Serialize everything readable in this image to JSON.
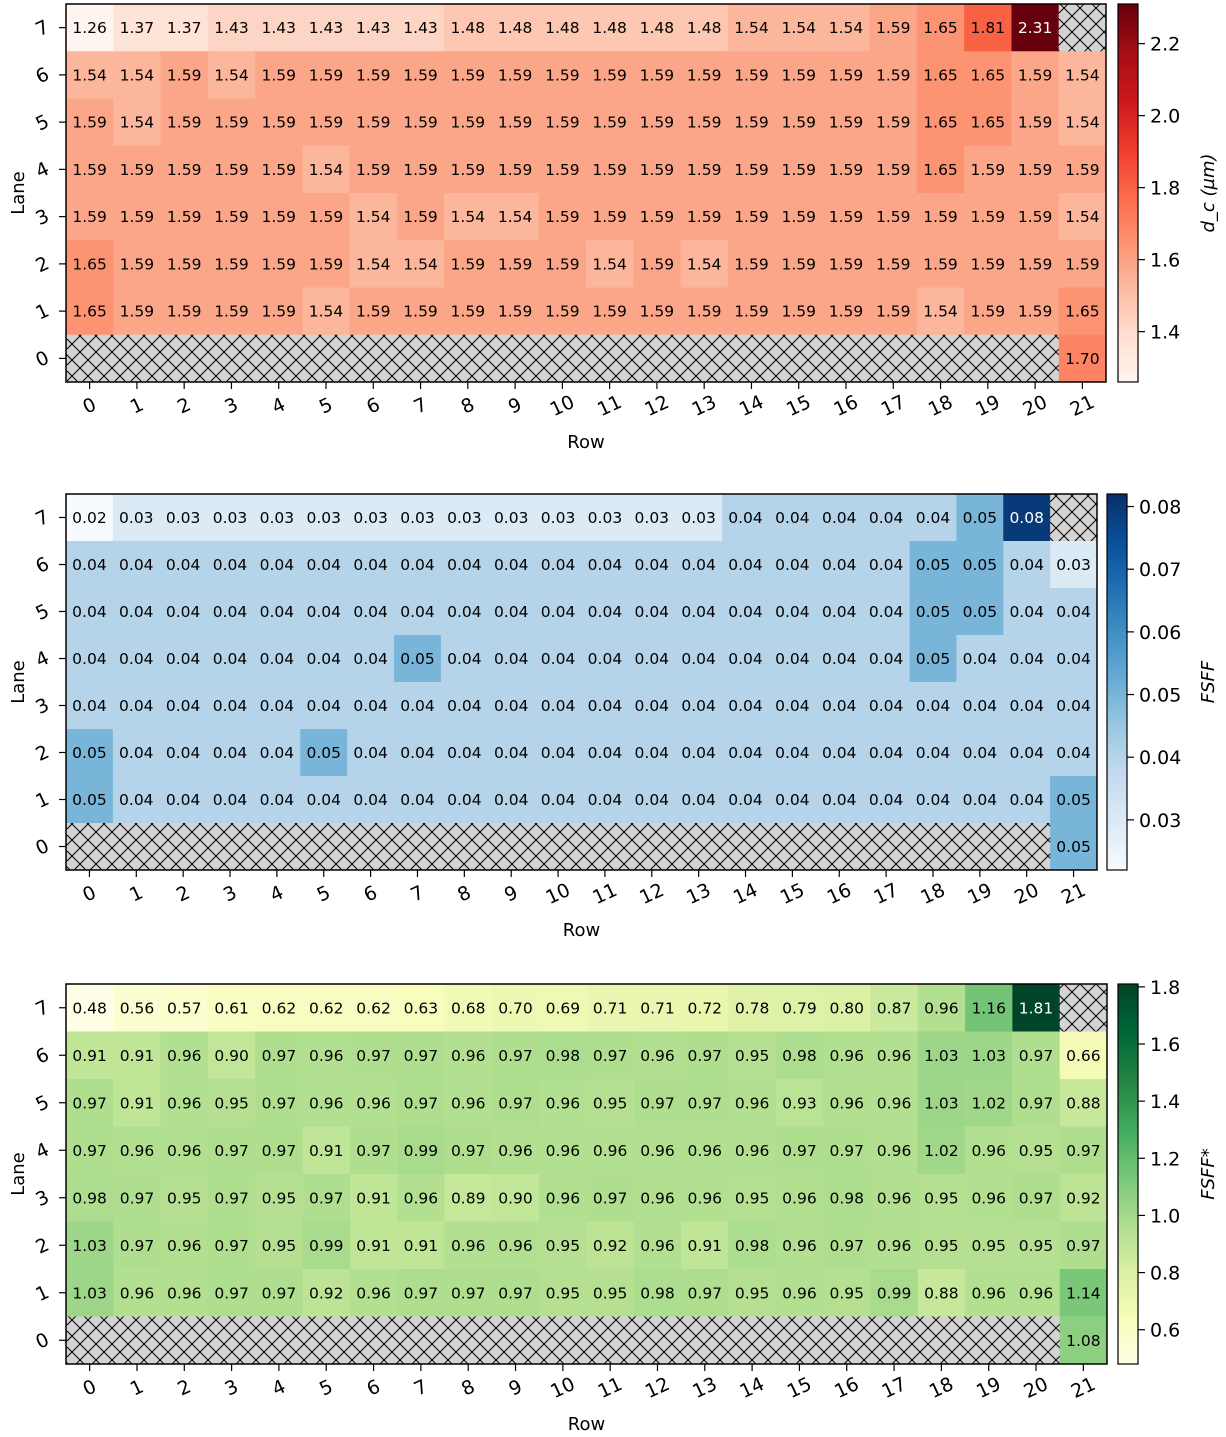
{
  "chart_data": [
    {
      "type": "heatmap",
      "xlabel": "Row",
      "ylabel": "Lane",
      "colorbar_label": "d_c (µm)",
      "colormap": "Reds",
      "vmin": 1.26,
      "vmax": 2.31,
      "colorbar_ticks": [
        1.4,
        1.6,
        1.8,
        2.0,
        2.2
      ],
      "colorbar_tick_labels": [
        "1.4",
        "1.6",
        "1.8",
        "2.0",
        "2.2"
      ],
      "x_ticks": [
        "0",
        "1",
        "2",
        "3",
        "4",
        "5",
        "6",
        "7",
        "8",
        "9",
        "10",
        "11",
        "12",
        "13",
        "14",
        "15",
        "16",
        "17",
        "18",
        "19",
        "20",
        "21"
      ],
      "y_ticks": [
        "7",
        "6",
        "5",
        "4",
        "3",
        "2",
        "1",
        "0"
      ],
      "missing_pattern": "hatched grey",
      "values": [
        [
          1.26,
          1.37,
          1.37,
          1.43,
          1.43,
          1.43,
          1.43,
          1.43,
          1.48,
          1.48,
          1.48,
          1.48,
          1.48,
          1.48,
          1.54,
          1.54,
          1.54,
          1.59,
          1.65,
          1.81,
          2.31,
          null
        ],
        [
          1.54,
          1.54,
          1.59,
          1.54,
          1.59,
          1.59,
          1.59,
          1.59,
          1.59,
          1.59,
          1.59,
          1.59,
          1.59,
          1.59,
          1.59,
          1.59,
          1.59,
          1.59,
          1.65,
          1.65,
          1.59,
          1.54
        ],
        [
          1.59,
          1.54,
          1.59,
          1.59,
          1.59,
          1.59,
          1.59,
          1.59,
          1.59,
          1.59,
          1.59,
          1.59,
          1.59,
          1.59,
          1.59,
          1.59,
          1.59,
          1.59,
          1.65,
          1.65,
          1.59,
          1.54
        ],
        [
          1.59,
          1.59,
          1.59,
          1.59,
          1.59,
          1.54,
          1.59,
          1.59,
          1.59,
          1.59,
          1.59,
          1.59,
          1.59,
          1.59,
          1.59,
          1.59,
          1.59,
          1.59,
          1.65,
          1.59,
          1.59,
          1.59
        ],
        [
          1.59,
          1.59,
          1.59,
          1.59,
          1.59,
          1.59,
          1.54,
          1.59,
          1.54,
          1.54,
          1.59,
          1.59,
          1.59,
          1.59,
          1.59,
          1.59,
          1.59,
          1.59,
          1.59,
          1.59,
          1.59,
          1.54
        ],
        [
          1.65,
          1.59,
          1.59,
          1.59,
          1.59,
          1.59,
          1.54,
          1.54,
          1.59,
          1.59,
          1.59,
          1.54,
          1.59,
          1.54,
          1.59,
          1.59,
          1.59,
          1.59,
          1.59,
          1.59,
          1.59,
          1.59
        ],
        [
          1.65,
          1.59,
          1.59,
          1.59,
          1.59,
          1.54,
          1.59,
          1.59,
          1.59,
          1.59,
          1.59,
          1.59,
          1.59,
          1.59,
          1.59,
          1.59,
          1.59,
          1.59,
          1.54,
          1.59,
          1.59,
          1.65
        ],
        [
          null,
          null,
          null,
          null,
          null,
          null,
          null,
          null,
          null,
          null,
          null,
          null,
          null,
          null,
          null,
          null,
          null,
          null,
          null,
          null,
          null,
          1.7
        ]
      ]
    },
    {
      "type": "heatmap",
      "xlabel": "Row",
      "ylabel": "Lane",
      "colorbar_label": "FSFF",
      "colormap": "Blues",
      "vmin": 0.022,
      "vmax": 0.082,
      "colorbar_ticks": [
        0.03,
        0.04,
        0.05,
        0.06,
        0.07,
        0.08
      ],
      "colorbar_tick_labels": [
        "0.03",
        "0.04",
        "0.05",
        "0.06",
        "0.07",
        "0.08"
      ],
      "x_ticks": [
        "0",
        "1",
        "2",
        "3",
        "4",
        "5",
        "6",
        "7",
        "8",
        "9",
        "10",
        "11",
        "12",
        "13",
        "14",
        "15",
        "16",
        "17",
        "18",
        "19",
        "20",
        "21"
      ],
      "y_ticks": [
        "7",
        "6",
        "5",
        "4",
        "3",
        "2",
        "1",
        "0"
      ],
      "missing_pattern": "hatched grey",
      "values": [
        [
          0.02,
          0.03,
          0.03,
          0.03,
          0.03,
          0.03,
          0.03,
          0.03,
          0.03,
          0.03,
          0.03,
          0.03,
          0.03,
          0.03,
          0.04,
          0.04,
          0.04,
          0.04,
          0.04,
          0.05,
          0.08,
          null
        ],
        [
          0.04,
          0.04,
          0.04,
          0.04,
          0.04,
          0.04,
          0.04,
          0.04,
          0.04,
          0.04,
          0.04,
          0.04,
          0.04,
          0.04,
          0.04,
          0.04,
          0.04,
          0.04,
          0.05,
          0.05,
          0.04,
          0.03
        ],
        [
          0.04,
          0.04,
          0.04,
          0.04,
          0.04,
          0.04,
          0.04,
          0.04,
          0.04,
          0.04,
          0.04,
          0.04,
          0.04,
          0.04,
          0.04,
          0.04,
          0.04,
          0.04,
          0.05,
          0.05,
          0.04,
          0.04
        ],
        [
          0.04,
          0.04,
          0.04,
          0.04,
          0.04,
          0.04,
          0.04,
          0.05,
          0.04,
          0.04,
          0.04,
          0.04,
          0.04,
          0.04,
          0.04,
          0.04,
          0.04,
          0.04,
          0.05,
          0.04,
          0.04,
          0.04
        ],
        [
          0.04,
          0.04,
          0.04,
          0.04,
          0.04,
          0.04,
          0.04,
          0.04,
          0.04,
          0.04,
          0.04,
          0.04,
          0.04,
          0.04,
          0.04,
          0.04,
          0.04,
          0.04,
          0.04,
          0.04,
          0.04,
          0.04
        ],
        [
          0.05,
          0.04,
          0.04,
          0.04,
          0.04,
          0.05,
          0.04,
          0.04,
          0.04,
          0.04,
          0.04,
          0.04,
          0.04,
          0.04,
          0.04,
          0.04,
          0.04,
          0.04,
          0.04,
          0.04,
          0.04,
          0.04
        ],
        [
          0.05,
          0.04,
          0.04,
          0.04,
          0.04,
          0.04,
          0.04,
          0.04,
          0.04,
          0.04,
          0.04,
          0.04,
          0.04,
          0.04,
          0.04,
          0.04,
          0.04,
          0.04,
          0.04,
          0.04,
          0.04,
          0.05
        ],
        [
          null,
          null,
          null,
          null,
          null,
          null,
          null,
          null,
          null,
          null,
          null,
          null,
          null,
          null,
          null,
          null,
          null,
          null,
          null,
          null,
          null,
          0.05
        ]
      ]
    },
    {
      "type": "heatmap",
      "xlabel": "Row",
      "ylabel": "Lane",
      "colorbar_label": "FSFF*",
      "colormap": "YlGn",
      "vmin": 0.48,
      "vmax": 1.81,
      "colorbar_ticks": [
        0.6,
        0.8,
        1.0,
        1.2,
        1.4,
        1.6,
        1.8
      ],
      "colorbar_tick_labels": [
        "0.6",
        "0.8",
        "1.0",
        "1.2",
        "1.4",
        "1.6",
        "1.8"
      ],
      "x_ticks": [
        "0",
        "1",
        "2",
        "3",
        "4",
        "5",
        "6",
        "7",
        "8",
        "9",
        "10",
        "11",
        "12",
        "13",
        "14",
        "15",
        "16",
        "17",
        "18",
        "19",
        "20",
        "21"
      ],
      "y_ticks": [
        "7",
        "6",
        "5",
        "4",
        "3",
        "2",
        "1",
        "0"
      ],
      "missing_pattern": "hatched grey",
      "values": [
        [
          0.48,
          0.56,
          0.57,
          0.61,
          0.62,
          0.62,
          0.62,
          0.63,
          0.68,
          0.7,
          0.69,
          0.71,
          0.71,
          0.72,
          0.78,
          0.79,
          0.8,
          0.87,
          0.96,
          1.16,
          1.81,
          null
        ],
        [
          0.91,
          0.91,
          0.96,
          0.9,
          0.97,
          0.96,
          0.97,
          0.97,
          0.96,
          0.97,
          0.98,
          0.97,
          0.96,
          0.97,
          0.95,
          0.98,
          0.96,
          0.96,
          1.03,
          1.03,
          0.97,
          0.66
        ],
        [
          0.97,
          0.91,
          0.96,
          0.95,
          0.97,
          0.96,
          0.96,
          0.97,
          0.96,
          0.97,
          0.96,
          0.95,
          0.97,
          0.97,
          0.96,
          0.93,
          0.96,
          0.96,
          1.03,
          1.02,
          0.97,
          0.88
        ],
        [
          0.97,
          0.96,
          0.96,
          0.97,
          0.97,
          0.91,
          0.97,
          0.99,
          0.97,
          0.96,
          0.96,
          0.96,
          0.96,
          0.96,
          0.96,
          0.97,
          0.97,
          0.96,
          1.02,
          0.96,
          0.95,
          0.97
        ],
        [
          0.98,
          0.97,
          0.95,
          0.97,
          0.95,
          0.97,
          0.91,
          0.96,
          0.89,
          0.9,
          0.96,
          0.97,
          0.96,
          0.96,
          0.95,
          0.96,
          0.98,
          0.96,
          0.95,
          0.96,
          0.97,
          0.92
        ],
        [
          1.03,
          0.97,
          0.96,
          0.97,
          0.95,
          0.99,
          0.91,
          0.91,
          0.96,
          0.96,
          0.95,
          0.92,
          0.96,
          0.91,
          0.98,
          0.96,
          0.97,
          0.96,
          0.95,
          0.95,
          0.95,
          0.97
        ],
        [
          1.03,
          0.96,
          0.96,
          0.97,
          0.97,
          0.92,
          0.96,
          0.97,
          0.97,
          0.97,
          0.95,
          0.95,
          0.98,
          0.97,
          0.95,
          0.96,
          0.95,
          0.99,
          0.88,
          0.96,
          0.96,
          1.14
        ],
        [
          null,
          null,
          null,
          null,
          null,
          null,
          null,
          null,
          null,
          null,
          null,
          null,
          null,
          null,
          null,
          null,
          null,
          null,
          null,
          null,
          null,
          1.08
        ]
      ]
    }
  ]
}
